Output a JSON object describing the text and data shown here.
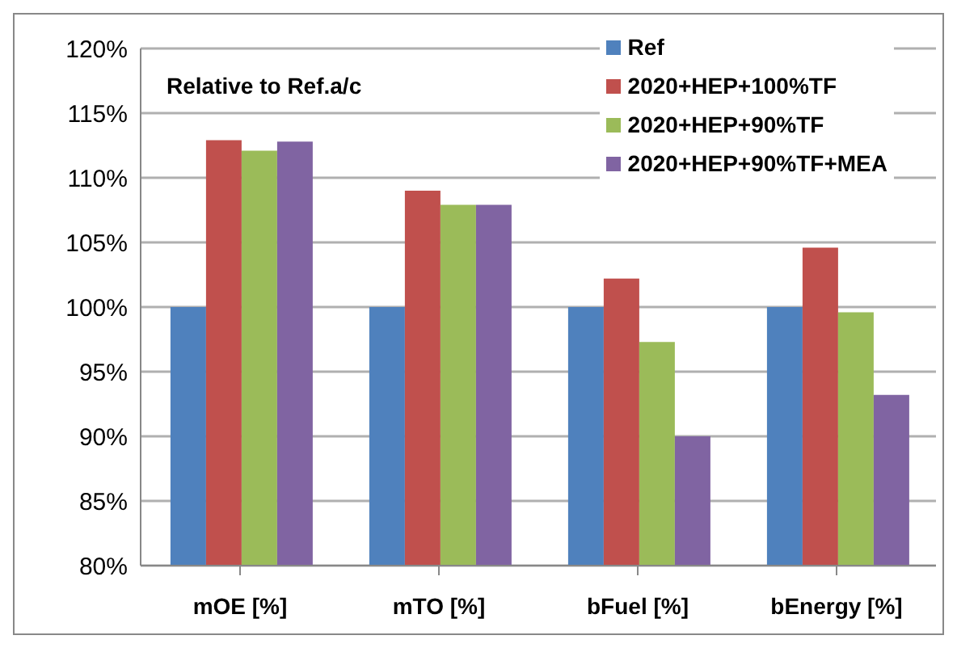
{
  "chart_data": {
    "type": "bar",
    "annotations": [
      "Relative to Ref.a/c"
    ],
    "categories": [
      "mOE [%]",
      "mTO [%]",
      "bFuel [%]",
      "bEnergy [%]"
    ],
    "series": [
      {
        "name": "Ref",
        "color": "#4f81bd",
        "values": [
          100,
          100,
          100,
          100
        ]
      },
      {
        "name": "2020+HEP+100%TF",
        "color": "#c0504d",
        "values": [
          112.9,
          109.0,
          102.2,
          104.6
        ]
      },
      {
        "name": "2020+HEP+90%TF",
        "color": "#9bbb59",
        "values": [
          112.1,
          107.9,
          97.3,
          99.6
        ]
      },
      {
        "name": "2020+HEP+90%TF+MEA",
        "color": "#8064a2",
        "values": [
          112.8,
          107.9,
          90.0,
          93.2
        ]
      }
    ],
    "ylim": [
      80,
      120
    ],
    "yticks": [
      {
        "value": 80,
        "label": "80%"
      },
      {
        "value": 85,
        "label": "85%"
      },
      {
        "value": 90,
        "label": "90%"
      },
      {
        "value": 95,
        "label": "95%"
      },
      {
        "value": 100,
        "label": "100%"
      },
      {
        "value": 105,
        "label": "105%"
      },
      {
        "value": 110,
        "label": "110%"
      },
      {
        "value": 115,
        "label": "115%"
      },
      {
        "value": 120,
        "label": "120%"
      }
    ],
    "grid": "y",
    "legend": "top right"
  }
}
